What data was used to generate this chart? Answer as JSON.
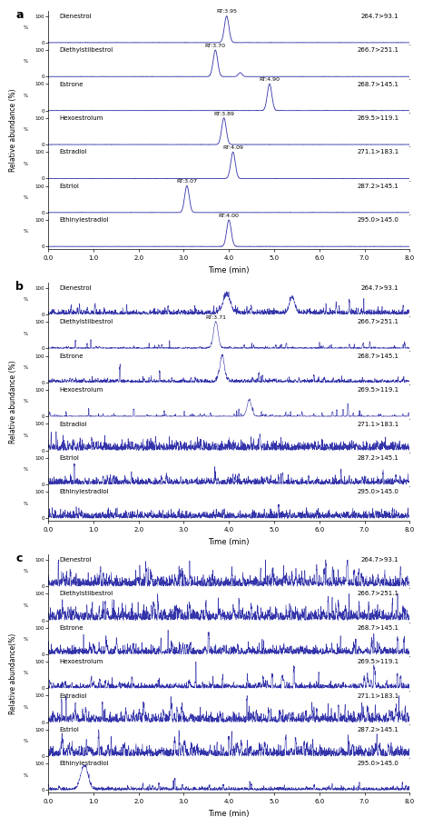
{
  "panel_a_label": "a",
  "panel_b_label": "b",
  "panel_c_label": "c",
  "compounds": [
    "Dienestrol",
    "Diethylstilbestrol",
    "Estrone",
    "Hexoestrolum",
    "Estradiol",
    "Estriol",
    "Ethinylestradiol"
  ],
  "mz_transitions": [
    "264.7>93.1",
    "266.7>251.1",
    "268.7>145.1",
    "269.5>119.1",
    "271.1>183.1",
    "287.2>145.1",
    "295.0>145.0"
  ],
  "panel_a_rt": [
    "RT:3.95",
    "RT:3.70",
    "RT:4.90",
    "RT:3.89",
    "RT:4.09",
    "RT:3.07",
    "RT:4.00"
  ],
  "panel_a_rt_x": [
    3.95,
    3.7,
    4.9,
    3.89,
    4.09,
    3.07,
    4.0
  ],
  "panel_b_rt": [
    "",
    "RT:3.71",
    "",
    "",
    "",
    "",
    ""
  ],
  "panel_b_rt_x": [
    null,
    3.71,
    null,
    null,
    null,
    null,
    null
  ],
  "xmin": 0.0,
  "xmax": 8.0,
  "xticks": [
    0.0,
    1.0,
    2.0,
    3.0,
    4.0,
    5.0,
    6.0,
    7.0,
    8.0
  ],
  "line_color": "#3333aa",
  "bg_color": "#ffffff",
  "ylabel_a": "Relative abundance (%)",
  "ylabel_c": "Relative abundance(%)",
  "xlabel": "Time (min)"
}
